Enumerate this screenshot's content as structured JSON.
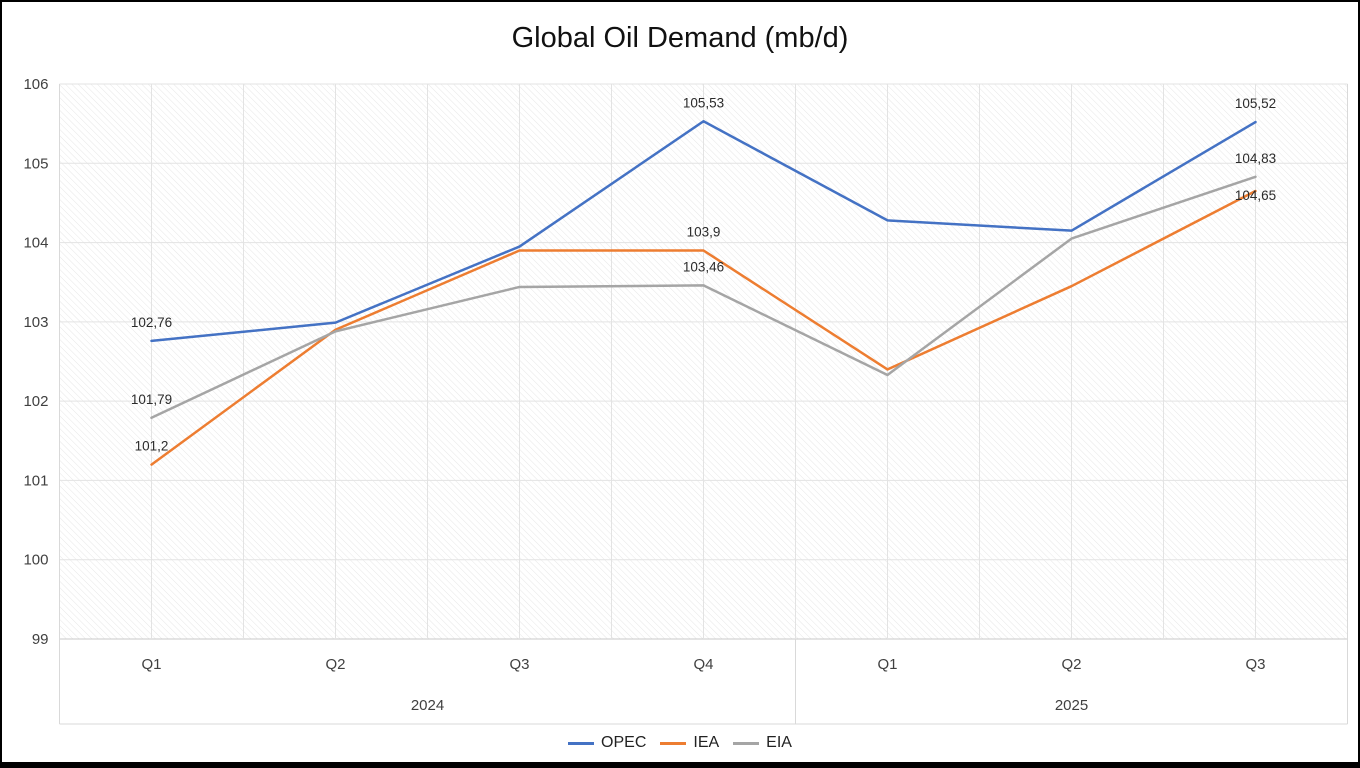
{
  "title": "Global Oil Demand (mb/d)",
  "chart_data": {
    "type": "line",
    "categories": [
      "Q1",
      "Q2",
      "Q3",
      "Q4",
      "Q1",
      "Q2",
      "Q3"
    ],
    "category_groups": [
      {
        "label": "2024",
        "span": 4
      },
      {
        "label": "2025",
        "span": 3
      }
    ],
    "ylim": [
      99,
      106
    ],
    "yticks": [
      "106",
      "105",
      "104",
      "103",
      "102",
      "101",
      "100",
      "99"
    ],
    "grid": {
      "horizontal": "major",
      "vertical": "half-category",
      "plot_fill": "light-diagonal-hatch"
    },
    "legend_position": "bottom-center",
    "series": [
      {
        "name": "OPEC",
        "color": "#4472C4",
        "values": [
          102.76,
          102.99,
          103.95,
          105.53,
          104.28,
          104.15,
          105.52
        ]
      },
      {
        "name": "IEA",
        "color": "#ED7D31",
        "values": [
          101.2,
          102.9,
          103.9,
          103.9,
          102.4,
          103.45,
          104.65
        ]
      },
      {
        "name": "EIA",
        "color": "#A5A5A5",
        "values": [
          101.79,
          102.88,
          103.44,
          103.46,
          102.33,
          104.05,
          104.83
        ]
      }
    ],
    "point_labels": [
      {
        "series": "OPEC",
        "index": 0,
        "text": "102,76"
      },
      {
        "series": "OPEC",
        "index": 3,
        "text": "105,53"
      },
      {
        "series": "OPEC",
        "index": 6,
        "text": "105,52"
      },
      {
        "series": "IEA",
        "index": 0,
        "text": "101,2"
      },
      {
        "series": "IEA",
        "index": 3,
        "text": "103,9"
      },
      {
        "series": "IEA",
        "index": 6,
        "text": "104,65",
        "dy": -4
      },
      {
        "series": "EIA",
        "index": 0,
        "text": "101,79"
      },
      {
        "series": "EIA",
        "index": 3,
        "text": "103,46"
      },
      {
        "series": "EIA",
        "index": 6,
        "text": "104,83"
      }
    ]
  },
  "legend": {
    "items": [
      {
        "label": "OPEC",
        "color": "#4472C4"
      },
      {
        "label": "IEA",
        "color": "#ED7D31"
      },
      {
        "label": "EIA",
        "color": "#A5A5A5"
      }
    ]
  },
  "colors": {
    "gridline": "#e3e3e3",
    "axis_line": "#c9c9c9",
    "axis_box": "#d9d9d9",
    "hatch": "#e7e7e7"
  }
}
